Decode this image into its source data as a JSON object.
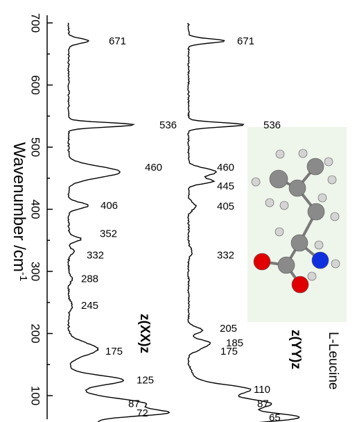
{
  "chart_data": {
    "type": "line",
    "orientation": "rotated-vertical",
    "ylabel": "Wavenumber /cm",
    "ylabel_superscript": "-1",
    "ylim": [
      50,
      700
    ],
    "yticks": [
      100,
      200,
      300,
      400,
      500,
      600,
      700
    ],
    "series": [
      {
        "name": "z(XX)z",
        "peaks": [
          671,
          536,
          460,
          406,
          352,
          332,
          288,
          245,
          175,
          125,
          87,
          72
        ]
      },
      {
        "name": "z(YY)z",
        "peaks": [
          671,
          536,
          460,
          445,
          405,
          332,
          205,
          185,
          175,
          110,
          87,
          65
        ]
      }
    ],
    "annotations": {
      "molecule_label": "L-Leucine"
    }
  },
  "colors": {
    "line": "#000000",
    "inset_background": "#eef5ea",
    "oxygen": "#e00000",
    "nitrogen": "#1030e0",
    "carbon": "#8a8a8a",
    "hydrogen": "#d4d4d4"
  }
}
